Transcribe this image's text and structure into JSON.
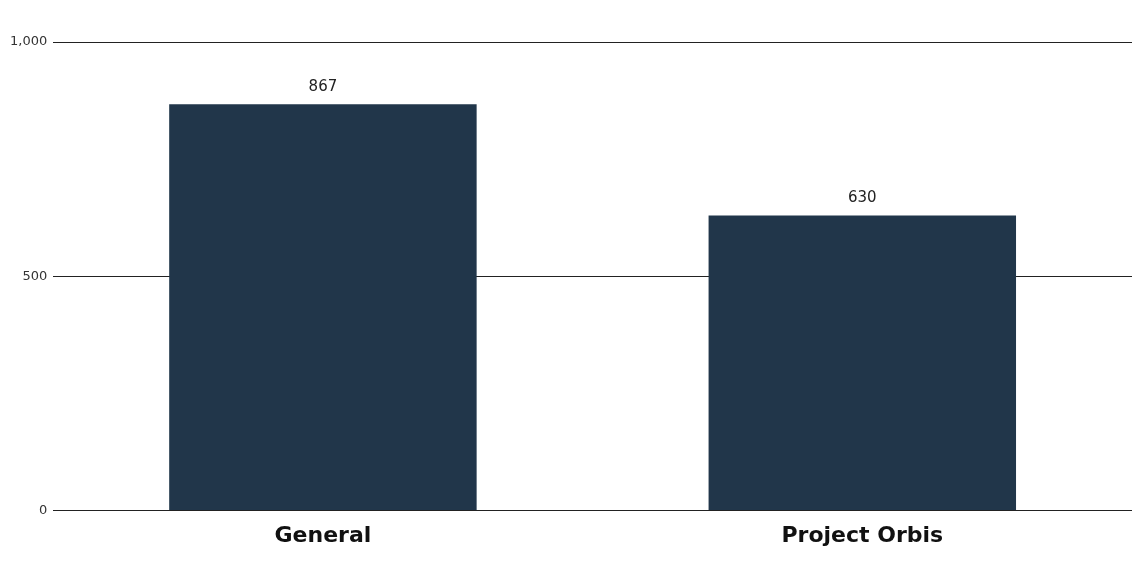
{
  "chart_data": {
    "type": "bar",
    "categories": [
      "General",
      "Project Orbis"
    ],
    "values": [
      867,
      630
    ],
    "color": "#21364a",
    "ylim": [
      0,
      1000
    ],
    "yticks": [
      0,
      {
        "value": 500,
        "label": "500"
      },
      {
        "value": 1000,
        "label": "1,000"
      }
    ],
    "grid": "y",
    "data_labels": true
  }
}
